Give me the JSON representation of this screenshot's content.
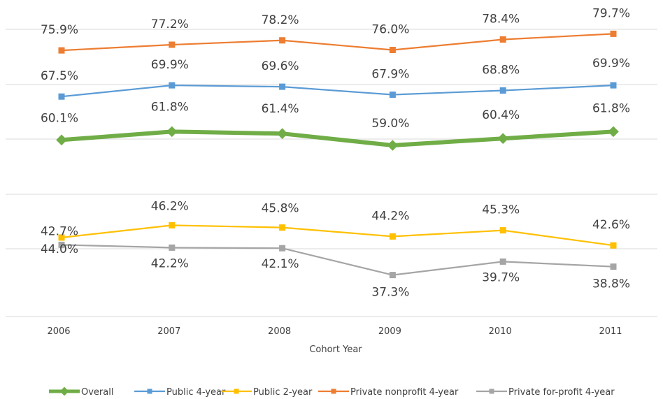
{
  "chart_data": {
    "type": "line",
    "title": "",
    "xlabel": "Cohort Year",
    "ylabel": "",
    "categories": [
      "2006",
      "2007",
      "2008",
      "2009",
      "2010",
      "2011"
    ],
    "grid": "horizontal",
    "legend_position": "bottom",
    "series": [
      {
        "name": "Overall",
        "color": "#70ad47",
        "values": [
          60.1,
          61.8,
          61.4,
          59.0,
          60.4,
          61.8
        ],
        "labels": [
          "60.1%",
          "61.8%",
          "61.4%",
          "59.0%",
          "60.4%",
          "61.8%"
        ]
      },
      {
        "name": "Public 4-year",
        "color": "#5b9bd5",
        "values": [
          67.5,
          69.9,
          69.6,
          67.9,
          68.8,
          69.9
        ],
        "labels": [
          "67.5%",
          "69.9%",
          "69.6%",
          "67.9%",
          "68.8%",
          "69.9%"
        ]
      },
      {
        "name": "Public 2-year",
        "color": "#ffc000",
        "values": [
          44.0,
          46.2,
          45.8,
          44.2,
          45.3,
          42.6
        ],
        "labels": [
          "44.0%",
          "46.2%",
          "45.8%",
          "44.2%",
          "45.3%",
          "42.6%"
        ]
      },
      {
        "name": "Private nonprofit 4-year",
        "color": "#ed7d31",
        "values": [
          75.9,
          77.2,
          78.2,
          76.0,
          78.4,
          79.7
        ],
        "labels": [
          "75.9%",
          "77.2%",
          "78.2%",
          "76.0%",
          "78.4%",
          "79.7%"
        ]
      },
      {
        "name": "Private for-profit 4-year",
        "color": "#a5a5a5",
        "values": [
          42.7,
          42.2,
          42.1,
          37.3,
          39.7,
          38.8
        ],
        "labels": [
          "42.7%",
          "42.2%",
          "42.1%",
          "37.3%",
          "39.7%",
          "38.8%"
        ]
      }
    ]
  }
}
